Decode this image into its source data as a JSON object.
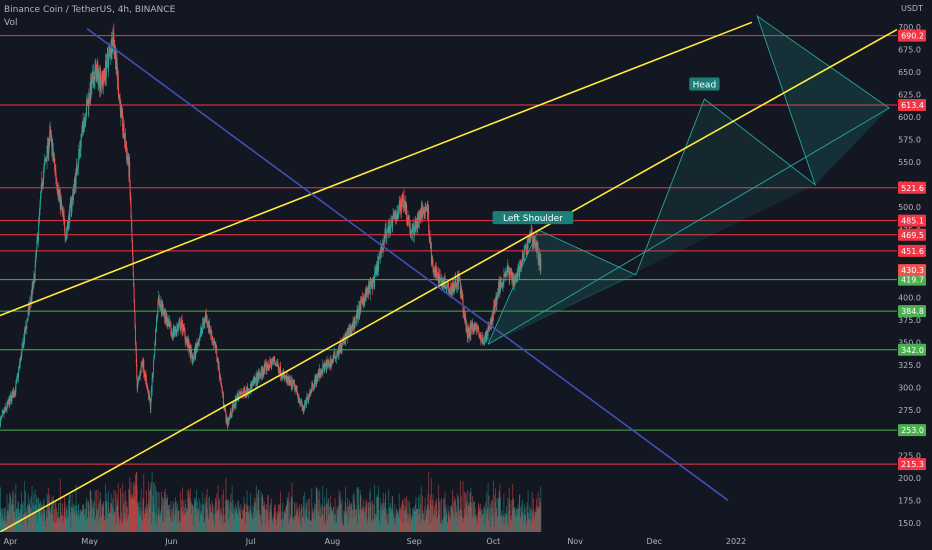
{
  "chart_data": {
    "type": "candlestick",
    "title": "Binance Coin / TetherUS, 4h, BINANCE",
    "indicator_label": "Vol",
    "currency": "USDT",
    "y_axis": {
      "min": 140,
      "max": 712,
      "scale": "linear",
      "ticks": [
        150,
        175,
        200,
        225,
        250,
        275,
        300,
        325,
        350,
        375,
        400,
        425,
        450,
        475,
        500,
        525,
        550,
        575,
        600,
        625,
        650,
        675,
        700
      ]
    },
    "x_axis": {
      "start": "2021-03-28",
      "end": "2022-03-03",
      "ticks": [
        {
          "date": "2021-04-01",
          "label": "Apr"
        },
        {
          "date": "2021-05-01",
          "label": "May"
        },
        {
          "date": "2021-06-01",
          "label": "Jun"
        },
        {
          "date": "2021-07-01",
          "label": "Jul"
        },
        {
          "date": "2021-08-01",
          "label": "Aug"
        },
        {
          "date": "2021-09-01",
          "label": "Sep"
        },
        {
          "date": "2021-10-01",
          "label": "Oct"
        },
        {
          "date": "2021-11-01",
          "label": "Nov"
        },
        {
          "date": "2021-12-01",
          "label": "Dec"
        },
        {
          "date": "2022-01-01",
          "label": "2022"
        }
      ]
    },
    "price_path": [
      [
        "2021-03-28",
        262
      ],
      [
        "2021-04-03",
        300
      ],
      [
        "2021-04-07",
        370
      ],
      [
        "2021-04-10",
        420
      ],
      [
        "2021-04-13",
        530
      ],
      [
        "2021-04-16",
        580
      ],
      [
        "2021-04-19",
        520
      ],
      [
        "2021-04-22",
        470
      ],
      [
        "2021-04-25",
        520
      ],
      [
        "2021-04-29",
        600
      ],
      [
        "2021-05-03",
        650
      ],
      [
        "2021-05-06",
        640
      ],
      [
        "2021-05-10",
        690
      ],
      [
        "2021-05-13",
        600
      ],
      [
        "2021-05-16",
        540
      ],
      [
        "2021-05-19",
        300
      ],
      [
        "2021-05-21",
        330
      ],
      [
        "2021-05-24",
        280
      ],
      [
        "2021-05-27",
        400
      ],
      [
        "2021-06-01",
        360
      ],
      [
        "2021-06-05",
        370
      ],
      [
        "2021-06-09",
        330
      ],
      [
        "2021-06-14",
        380
      ],
      [
        "2021-06-18",
        340
      ],
      [
        "2021-06-22",
        260
      ],
      [
        "2021-06-26",
        290
      ],
      [
        "2021-07-01",
        300
      ],
      [
        "2021-07-06",
        320
      ],
      [
        "2021-07-10",
        330
      ],
      [
        "2021-07-14",
        310
      ],
      [
        "2021-07-18",
        300
      ],
      [
        "2021-07-21",
        275
      ],
      [
        "2021-07-24",
        300
      ],
      [
        "2021-07-28",
        320
      ],
      [
        "2021-08-01",
        330
      ],
      [
        "2021-08-05",
        350
      ],
      [
        "2021-08-09",
        370
      ],
      [
        "2021-08-13",
        400
      ],
      [
        "2021-08-17",
        420
      ],
      [
        "2021-08-21",
        470
      ],
      [
        "2021-08-25",
        490
      ],
      [
        "2021-08-28",
        510
      ],
      [
        "2021-08-31",
        470
      ],
      [
        "2021-09-03",
        490
      ],
      [
        "2021-09-06",
        500
      ],
      [
        "2021-09-08",
        430
      ],
      [
        "2021-09-11",
        420
      ],
      [
        "2021-09-15",
        410
      ],
      [
        "2021-09-18",
        420
      ],
      [
        "2021-09-21",
        360
      ],
      [
        "2021-09-24",
        370
      ],
      [
        "2021-09-27",
        350
      ],
      [
        "2021-09-30",
        370
      ],
      [
        "2021-10-03",
        410
      ],
      [
        "2021-10-06",
        430
      ],
      [
        "2021-10-09",
        420
      ],
      [
        "2021-10-12",
        440
      ],
      [
        "2021-10-15",
        470
      ],
      [
        "2021-10-17",
        460
      ],
      [
        "2021-10-19",
        435
      ]
    ],
    "horizontal_levels": [
      {
        "value": 690.2,
        "label": "690.2",
        "color": "#f23645"
      },
      {
        "value": 613.4,
        "label": "613.4",
        "color": "#f23645"
      },
      {
        "value": 521.6,
        "label": "521.6",
        "color": "#f23645"
      },
      {
        "value": 485.1,
        "label": "485.1",
        "color": "#f23645"
      },
      {
        "value": 469.5,
        "label": "469.5",
        "color": "#f23645"
      },
      {
        "value": 451.6,
        "label": "451.6",
        "color": "#f23645"
      },
      {
        "value": 419.7,
        "label": "419.7",
        "color": "#4caf50"
      },
      {
        "value": 384.8,
        "label": "384.8",
        "color": "#4caf50"
      },
      {
        "value": 342.0,
        "label": "342.0",
        "color": "#4caf50"
      },
      {
        "value": 253.0,
        "label": "253.0",
        "color": "#4caf50"
      },
      {
        "value": 215.3,
        "label": "215.3",
        "color": "#f23645"
      }
    ],
    "trend_lines": [
      {
        "color": "#ffeb3b",
        "points": [
          [
            "2021-03-28",
            380
          ],
          [
            "2022-01-07",
            705
          ]
        ]
      },
      {
        "color": "#ffeb3b",
        "points": [
          [
            "2021-03-28",
            140
          ],
          [
            "2022-03-03",
            697
          ]
        ]
      },
      {
        "color": "#3f51b5",
        "points": [
          [
            "2021-04-30",
            698
          ],
          [
            "2021-12-29",
            175
          ]
        ]
      }
    ],
    "pattern_path": {
      "color": "#26a69a",
      "points": [
        [
          "2021-09-29",
          348
        ],
        [
          "2021-10-18",
          475
        ],
        [
          "2021-11-24",
          425
        ],
        [
          "2021-12-20",
          620
        ],
        [
          "2022-01-31",
          525
        ],
        [
          "2022-02-28",
          610
        ]
      ],
      "apex": [
        "2022-01-09",
        712
      ]
    },
    "annotations": [
      {
        "text": "Left Shoulder",
        "date": "2021-10-16",
        "value": 488,
        "color": "#1b7f78"
      },
      {
        "text": "Head",
        "date": "2021-12-20",
        "value": 636,
        "color": "#1b7f78"
      }
    ],
    "last_price": {
      "label": "430.3",
      "value": 430.3
    },
    "colors": {
      "up": "#26a69a",
      "down": "#ef5350",
      "background": "#131722",
      "axis_text": "#b2b5be"
    }
  }
}
